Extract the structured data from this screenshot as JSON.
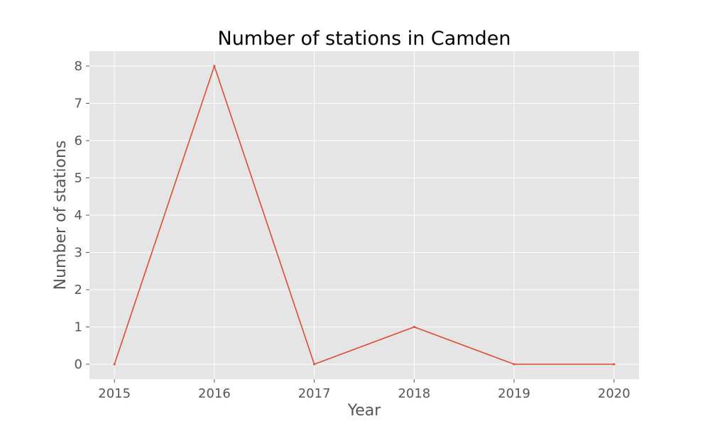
{
  "chart_data": {
    "type": "line",
    "title": "Number of stations in Camden",
    "xlabel": "Year",
    "ylabel": "Number of stations",
    "x": [
      2015,
      2016,
      2017,
      2018,
      2019,
      2020
    ],
    "series": [
      {
        "values": [
          0,
          8,
          0,
          1,
          0,
          0
        ],
        "color": "#e24a33"
      }
    ],
    "xlim": [
      2014.75,
      2020.25
    ],
    "ylim": [
      -0.4,
      8.4
    ],
    "xticks": [
      "2015",
      "2016",
      "2017",
      "2018",
      "2019",
      "2020"
    ],
    "yticks": [
      "0",
      "1",
      "2",
      "3",
      "4",
      "5",
      "6",
      "7",
      "8"
    ],
    "grid": true,
    "style": {
      "plot_background": "#e5e5e5",
      "grid_color": "#ffffff",
      "text_color": "#555555"
    }
  }
}
